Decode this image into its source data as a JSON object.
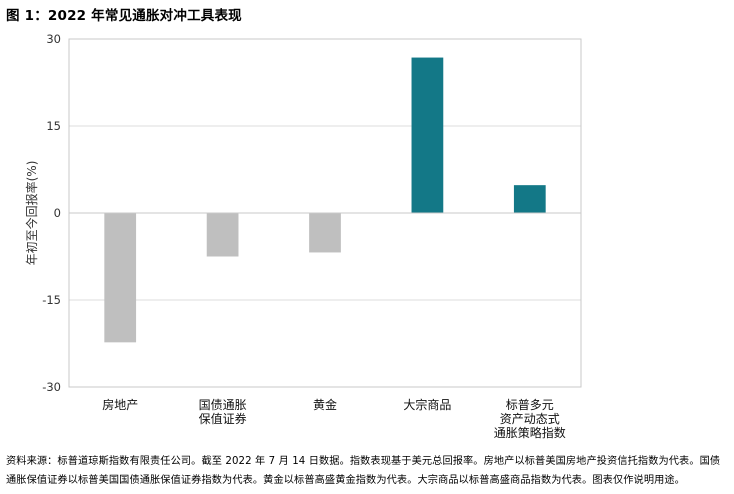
{
  "title": "图 1：2022 年常见通胀对冲工具表现",
  "footnote": "资料来源：标普道琼斯指数有限责任公司。截至 2022 年 7 月 14 日数据。指数表现基于美元总回报率。房地产以标普美国房地产投资信托指数为代表。国债通胀保值证券以标普美国国债通胀保值证券指数为代表。黄金以标普高盛黄金指数为代表。大宗商品以标普高盛商品指数为代表。图表仅作说明用途。",
  "chart_data": {
    "type": "bar",
    "ylabel": "年初至今回报率(%)",
    "ylim": [
      -30,
      30
    ],
    "yticks": [
      -30,
      -15,
      0,
      15,
      30
    ],
    "grid": true,
    "categories": [
      [
        "房地产"
      ],
      [
        "国债通胀",
        "保值证券"
      ],
      [
        "黄金"
      ],
      [
        "大宗商品"
      ],
      [
        "标普多元",
        "资产动态式",
        "通胀策略指数"
      ]
    ],
    "values": [
      -22.3,
      -7.5,
      -6.8,
      26.8,
      4.8
    ],
    "colors": [
      "#bfbfbf",
      "#bfbfbf",
      "#bfbfbf",
      "#137887",
      "#137887"
    ]
  }
}
